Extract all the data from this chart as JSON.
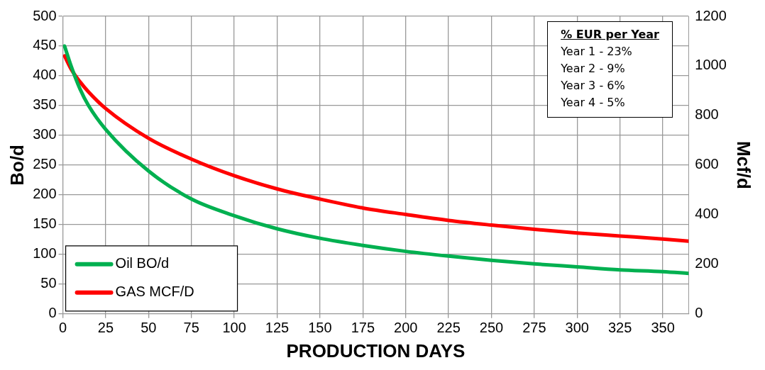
{
  "chart_data": {
    "type": "line",
    "xlabel": "PRODUCTION DAYS",
    "ylabel": "Bo/d",
    "y2label": "Mcf/d",
    "annotations": [
      "% EUR per Year",
      "Year 1 - 23%",
      "Year 2 - 9%",
      "Year 3 - 6%",
      "Year 4 - 5%"
    ],
    "series": [
      {
        "name": "Oil BO/d",
        "color": "#00b050",
        "x": [
          1,
          5,
          10,
          15,
          25,
          50,
          75,
          100,
          125,
          150,
          175,
          200,
          225,
          250,
          275,
          300,
          325,
          350,
          365
        ],
        "values": [
          450,
          415,
          378,
          350,
          310,
          240,
          193,
          165,
          143,
          127,
          115,
          105,
          97,
          90,
          84,
          79,
          74,
          71,
          68
        ]
      },
      {
        "name": "GAS MCF/D",
        "color": "#ff0000",
        "axis": "y2",
        "x": [
          1,
          5,
          10,
          15,
          25,
          50,
          75,
          100,
          125,
          150,
          175,
          200,
          225,
          250,
          275,
          300,
          325,
          350,
          365
        ],
        "values": [
          1040,
          985,
          936,
          895,
          828,
          708,
          624,
          557,
          504,
          463,
          427,
          401,
          377,
          358,
          341,
          326,
          314,
          302,
          293
        ]
      }
    ],
    "xlim": [
      0,
      365
    ],
    "xticks": [
      0,
      25,
      50,
      75,
      100,
      125,
      150,
      175,
      200,
      225,
      250,
      275,
      300,
      325,
      350
    ],
    "ylim": [
      0,
      500
    ],
    "yticks": [
      0,
      50,
      100,
      150,
      200,
      250,
      300,
      350,
      400,
      450,
      500
    ],
    "y2lim": [
      0,
      1200
    ],
    "y2ticks": [
      0,
      200,
      400,
      600,
      800,
      1000,
      1200
    ],
    "grid": true,
    "legend": "bottom left",
    "marker": "none",
    "line_style": "solid"
  }
}
